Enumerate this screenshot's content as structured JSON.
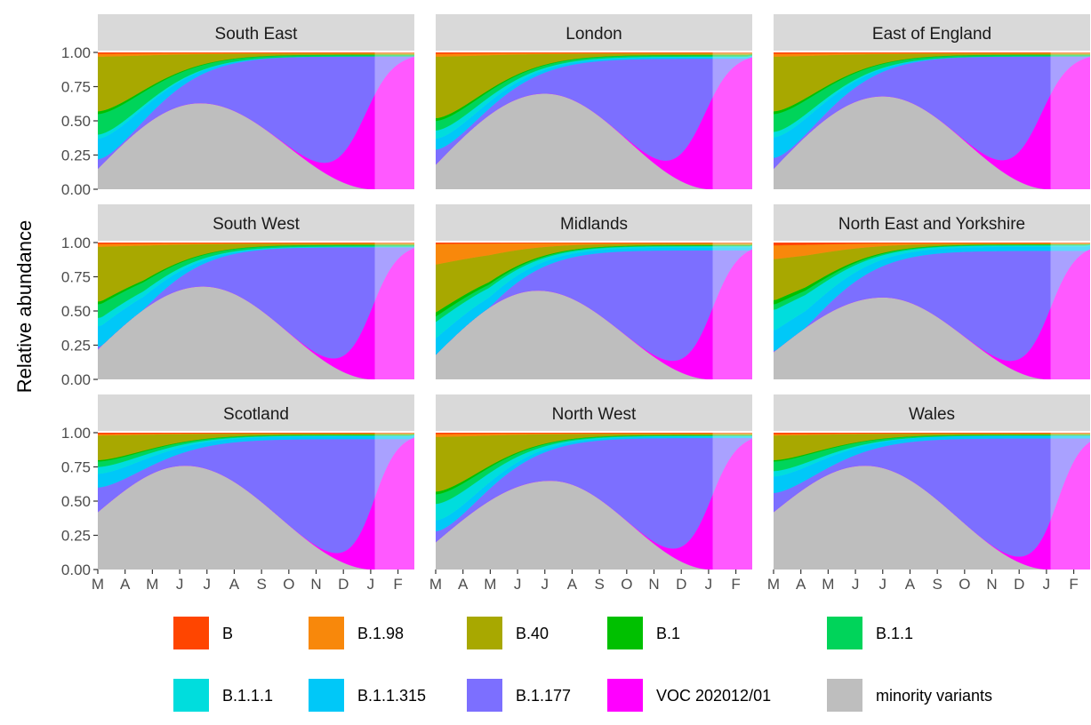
{
  "chart_data": {
    "type": "area",
    "layout": "facet-grid-3x3",
    "ylabel": "Relative abundance",
    "xlabel": "",
    "ylim": [
      0,
      1
    ],
    "y_ticks": [
      "0.00",
      "0.25",
      "0.50",
      "0.75",
      "1.00"
    ],
    "x_tick_labels": [
      "M",
      "A",
      "M",
      "J",
      "J",
      "A",
      "S",
      "O",
      "N",
      "D",
      "J",
      "F"
    ],
    "x_ticks_month": [
      0,
      1,
      2,
      3,
      4,
      5,
      6,
      7,
      8,
      9,
      10,
      11
    ],
    "x_range_month": [
      0,
      11.6
    ],
    "forecast_start_month": 10.15,
    "series_order_top_to_bottom": [
      "B",
      "B.1.98",
      "B.40",
      "B.1",
      "B.1.1",
      "B.1.1.1",
      "B.1.1.315",
      "B.1.177",
      "VOC 202012/01",
      "minority variants"
    ],
    "legend": {
      "placement": "bottom",
      "items": [
        {
          "label": "B",
          "color": "#FF4500"
        },
        {
          "label": "B.1.98",
          "color": "#F8880B"
        },
        {
          "label": "B.40",
          "color": "#A8A800"
        },
        {
          "label": "B.1",
          "color": "#00C000"
        },
        {
          "label": "B.1.1",
          "color": "#00D45A"
        },
        {
          "label": "B.1.1.1",
          "color": "#00DDDD"
        },
        {
          "label": "B.1.1.315",
          "color": "#00C8F8"
        },
        {
          "label": "B.1.177",
          "color": "#7C6FFF"
        },
        {
          "label": "VOC 202012/01",
          "color": "#FF00FF"
        },
        {
          "label": "minority variants",
          "color": "#BEBEBE"
        }
      ]
    },
    "panels": [
      {
        "title": "South East",
        "curves": {
          "minority": [
            0.15,
            0.63,
            3.75,
            0.0
          ],
          "voc": [
            9.7,
            0.55
          ],
          "gaps": [
            [
              0.01,
              0.003
            ],
            [
              0.02,
              0.005
            ],
            [
              0.4,
              0.008
            ],
            [
              0.02,
              0.002
            ],
            [
              0.15,
              0.01
            ],
            [
              0.03,
              0.0
            ],
            [
              0.15,
              0.0
            ]
          ]
        }
      },
      {
        "title": "London",
        "curves": {
          "minority": [
            0.18,
            0.7,
            4.0,
            0.0
          ],
          "voc": [
            9.75,
            0.55
          ],
          "gaps": [
            [
              0.01,
              0.003
            ],
            [
              0.02,
              0.005
            ],
            [
              0.45,
              0.01
            ],
            [
              0.02,
              0.002
            ],
            [
              0.07,
              0.01
            ],
            [
              0.06,
              0.005
            ],
            [
              0.08,
              0.01
            ]
          ]
        }
      },
      {
        "title": "East of England",
        "curves": {
          "minority": [
            0.15,
            0.68,
            4.0,
            0.0
          ],
          "voc": [
            9.7,
            0.55
          ],
          "gaps": [
            [
              0.01,
              0.003
            ],
            [
              0.02,
              0.005
            ],
            [
              0.4,
              0.008
            ],
            [
              0.02,
              0.002
            ],
            [
              0.13,
              0.01
            ],
            [
              0.04,
              0.0
            ],
            [
              0.15,
              0.0
            ]
          ]
        }
      },
      {
        "title": "South West",
        "curves": {
          "minority": [
            0.22,
            0.68,
            3.85,
            0.0
          ],
          "voc": [
            10.0,
            0.5
          ],
          "gaps": [
            [
              0.01,
              0.003
            ],
            [
              0.02,
              0.005
            ],
            [
              0.4,
              0.008
            ],
            [
              0.02,
              0.002
            ],
            [
              0.1,
              0.01
            ],
            [
              0.06,
              0.005
            ],
            [
              0.15,
              0.0
            ]
          ]
        }
      },
      {
        "title": "Midlands",
        "curves": {
          "minority": [
            0.18,
            0.65,
            3.75,
            0.0
          ],
          "voc": [
            10.1,
            0.5
          ],
          "gaps": [
            [
              0.01,
              0.003
            ],
            [
              0.15,
              0.005
            ],
            [
              0.35,
              0.01
            ],
            [
              0.03,
              0.003
            ],
            [
              0.04,
              0.005
            ],
            [
              0.12,
              0.01
            ],
            [
              0.12,
              0.02
            ]
          ]
        }
      },
      {
        "title": "North East and Yorkshire",
        "curves": {
          "minority": [
            0.2,
            0.6,
            4.0,
            0.0
          ],
          "voc": [
            10.1,
            0.5
          ],
          "gaps": [
            [
              0.02,
              0.003
            ],
            [
              0.1,
              0.005
            ],
            [
              0.3,
              0.005
            ],
            [
              0.03,
              0.002
            ],
            [
              0.04,
              0.005
            ],
            [
              0.15,
              0.01
            ],
            [
              0.15,
              0.03
            ]
          ]
        }
      },
      {
        "title": "Scotland",
        "curves": {
          "minority": [
            0.42,
            0.76,
            3.2,
            0.0
          ],
          "voc": [
            10.1,
            0.45
          ],
          "gaps": [
            [
              0.01,
              0.003
            ],
            [
              0.01,
              0.003
            ],
            [
              0.18,
              0.008
            ],
            [
              0.01,
              0.002
            ],
            [
              0.04,
              0.005
            ],
            [
              0.05,
              0.005
            ],
            [
              0.1,
              0.02
            ]
          ]
        }
      },
      {
        "title": "North West",
        "curves": {
          "minority": [
            0.2,
            0.65,
            4.2,
            0.0
          ],
          "voc": [
            10.05,
            0.5
          ],
          "gaps": [
            [
              0.01,
              0.003
            ],
            [
              0.02,
              0.005
            ],
            [
              0.4,
              0.008
            ],
            [
              0.02,
              0.002
            ],
            [
              0.07,
              0.005
            ],
            [
              0.12,
              0.005
            ],
            [
              0.08,
              0.01
            ]
          ]
        }
      },
      {
        "title": "Wales",
        "curves": {
          "minority": [
            0.42,
            0.76,
            3.35,
            0.0
          ],
          "voc": [
            10.4,
            0.45
          ],
          "gaps": [
            [
              0.01,
              0.003
            ],
            [
              0.01,
              0.003
            ],
            [
              0.18,
              0.008
            ],
            [
              0.01,
              0.002
            ],
            [
              0.07,
              0.005
            ],
            [
              0.04,
              0.0
            ],
            [
              0.12,
              0.02
            ]
          ]
        }
      }
    ]
  }
}
